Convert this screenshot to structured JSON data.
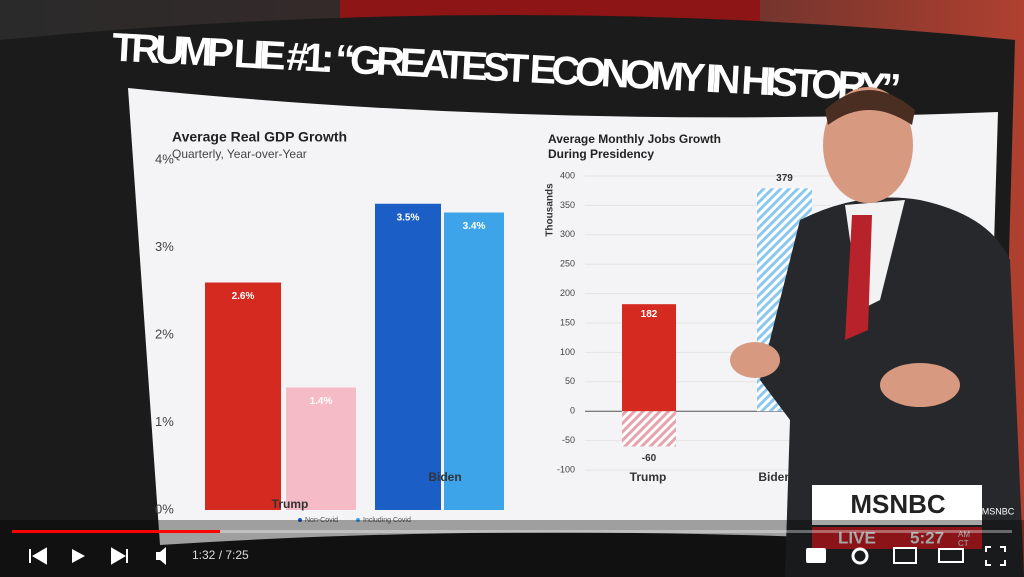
{
  "header": {
    "title": "TRUMP LIE #1: “GREATEST ECONOMY IN HISTORY”"
  },
  "charts": [
    {
      "type": "bar",
      "title": "Average Real GDP Growth",
      "subtitle": "Quarterly, Year-over-Year",
      "categories": [
        "Trump",
        "Biden"
      ],
      "series": [
        {
          "name": "Non-Covid",
          "colors": [
            "#d42a1f",
            "#1b5fc6"
          ],
          "values": [
            2.6,
            3.5
          ],
          "value_labels": [
            "2.6%",
            "3.5%"
          ]
        },
        {
          "name": "Including Covid",
          "colors": [
            "#f5bcc7",
            "#3ea4ea"
          ],
          "values": [
            1.4,
            3.4
          ],
          "value_labels": [
            "1.4%",
            "3.4%"
          ]
        }
      ],
      "ylim": [
        0,
        4
      ],
      "yticks": [
        {
          "value": 0,
          "label": "0%"
        },
        {
          "value": 1,
          "label": "1%"
        },
        {
          "value": 2,
          "label": "2%"
        },
        {
          "value": 3,
          "label": "3%"
        },
        {
          "value": 4,
          "label": "4%"
        }
      ]
    },
    {
      "type": "overlay-bar",
      "title": [
        "Average Monthly Jobs Growth",
        "During Presidency"
      ],
      "ylabel": "Thousands",
      "categories": [
        "Trump",
        "Biden"
      ],
      "series": [
        {
          "colors": [
            "#d42a1f",
            "#1b5fc6"
          ],
          "values": [
            182,
            null
          ]
        },
        {
          "colors": [
            "#e7a3ae",
            "#8cc8ee"
          ],
          "hatch": true,
          "values": [
            -60,
            379
          ]
        }
      ],
      "ylim": [
        -100,
        400
      ],
      "yticks": [
        -100,
        -50,
        0,
        50,
        100,
        150,
        200,
        250,
        300,
        350,
        400
      ]
    }
  ],
  "player": {
    "time": "1:32 / 7:25"
  },
  "bug": {
    "network": "MSNBC",
    "live": "LIVE",
    "clock": "5:27",
    "ampm": "AM",
    "zone": "CT"
  }
}
